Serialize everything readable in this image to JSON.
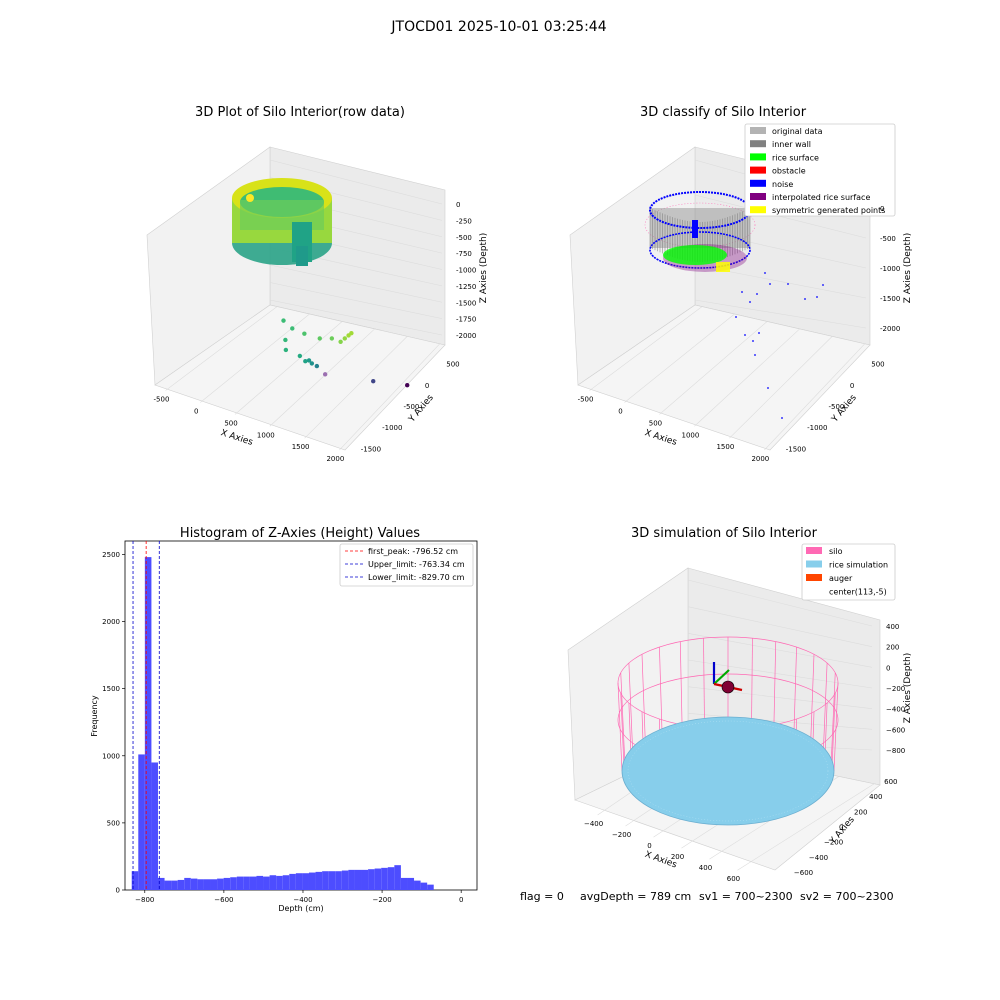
{
  "figure": {
    "suptitle": "JTOCD01 2025-10-01 03:25:44",
    "status_line": {
      "flag": "flag = 0",
      "avg_depth": "avgDepth = 789 cm",
      "sv1": "sv1 = 700~2300",
      "sv2": "sv2 = 700~2300"
    }
  },
  "colors": {
    "original": "#b3b3b3",
    "inner_wall": "#808080",
    "rice_surface": "#00ff00",
    "obstacle": "#ff0000",
    "noise": "#0000ff",
    "interpolated": "#800080",
    "symmetric": "#ffff00",
    "hist_bar": "#4d4dff",
    "silo": "#ff69b4",
    "rice_sim": "#87ceeb",
    "auger": "#ff4500",
    "peak_line": "#ff0000",
    "limit_line": "#0000cc"
  },
  "chart_data": [
    {
      "type": "scatter",
      "title": "3D Plot of Silo Interior(row data)",
      "projection": "3d",
      "xlabel": "X Axies",
      "ylabel": "Y Axies",
      "zlabel": "Z Axies (Depth)",
      "xticks": [
        "-500",
        "0",
        "500",
        "1000",
        "1500",
        "2000"
      ],
      "yticks": [
        "500",
        "0",
        "-500",
        "-1000",
        "-1500"
      ],
      "zticks": [
        "0",
        "-250",
        "-500",
        "-750",
        "-1000",
        "-1250",
        "-1500",
        "-1750",
        "-2000"
      ],
      "xlim": [
        -600,
        2200
      ],
      "ylim": [
        -1600,
        700
      ],
      "zlim": [
        -2050,
        100
      ],
      "colormap": "viridis",
      "series": [
        {
          "values": "silo ring near z≈-800",
          "points": [
            [
              0,
              0,
              -800
            ],
            [
              200,
              0,
              -800
            ],
            [
              400,
              0,
              -800
            ]
          ]
        }
      ],
      "outlier_points": [
        [
          450,
          -200,
          -900,
          "#3cbc75"
        ],
        [
          550,
          -250,
          -1000,
          "#3cbc75"
        ],
        [
          700,
          -300,
          -1050,
          "#4cc26c"
        ],
        [
          900,
          -350,
          -1080,
          "#5ec962"
        ],
        [
          1050,
          -400,
          -1060,
          "#6ccd5a"
        ],
        [
          1150,
          -450,
          -1100,
          "#84d44b"
        ],
        [
          1200,
          -470,
          -1050,
          "#93d741"
        ],
        [
          1250,
          -480,
          -1000,
          "#a2da37"
        ],
        [
          1280,
          -500,
          -970,
          "#a2da37"
        ],
        [
          380,
          -350,
          -1250,
          "#35b779"
        ],
        [
          420,
          -300,
          -1350,
          "#2db27d"
        ],
        [
          500,
          -500,
          -1500,
          "#25ab82"
        ],
        [
          550,
          -550,
          -1580,
          "#20a386"
        ],
        [
          560,
          -620,
          -1600,
          "#1f9a8a"
        ],
        [
          550,
          -700,
          -1680,
          "#21918c"
        ],
        [
          560,
          -800,
          -1760,
          "#26828e"
        ],
        [
          620,
          -900,
          -1900,
          "#9b6fb0"
        ],
        [
          1150,
          -1200,
          -1980,
          "#404688"
        ],
        [
          1500,
          -1450,
          -2050,
          "#440154"
        ]
      ]
    },
    {
      "type": "scatter",
      "title": "3D classify of Silo Interior",
      "projection": "3d",
      "xlabel": "X Axies",
      "ylabel": "Y Axies",
      "zlabel": "Z Axies (Depth)",
      "xticks": [
        "-500",
        "0",
        "500",
        "1000",
        "1500",
        "2000"
      ],
      "yticks": [
        "500",
        "0",
        "-500",
        "-1000",
        "-1500"
      ],
      "zticks": [
        "0",
        "-500",
        "-1000",
        "-1500",
        "-2000"
      ],
      "legend_position": "upper right",
      "legend": [
        "original data",
        "inner wall",
        "rice surface",
        "obstacle",
        "noise",
        "interpolated rice surface",
        "symmetric generated points"
      ]
    },
    {
      "type": "bar",
      "title": "Histogram of Z-Axies (Height) Values",
      "xlabel": "Depth (cm)",
      "ylabel": "Frequency",
      "xlim": [
        -850,
        40
      ],
      "ylim": [
        0,
        2600
      ],
      "xticks": [
        "−800",
        "−600",
        "−400",
        "−200",
        "0"
      ],
      "xtick_values": [
        -800,
        -600,
        -400,
        -200,
        0
      ],
      "yticks": [
        "0",
        "500",
        "1000",
        "1500",
        "2000",
        "2500"
      ],
      "ytick_values": [
        0,
        500,
        1000,
        1500,
        2000,
        2500
      ],
      "bin_edges_start": -833,
      "bin_width": 16.6,
      "values": [
        140,
        1010,
        2480,
        950,
        90,
        70,
        70,
        75,
        90,
        85,
        80,
        80,
        80,
        85,
        90,
        95,
        100,
        100,
        100,
        105,
        100,
        110,
        105,
        110,
        120,
        125,
        125,
        130,
        135,
        140,
        140,
        140,
        145,
        150,
        150,
        150,
        155,
        160,
        165,
        170,
        185,
        90,
        90,
        70,
        55,
        40
      ],
      "vlines": [
        {
          "name": "first_peak: -796.52 cm",
          "x": -796.52,
          "style": "peak"
        },
        {
          "name": "Upper_limit: -763.34 cm",
          "x": -763.34,
          "style": "limit"
        },
        {
          "name": "Lower_limit: -829.70 cm",
          "x": -829.7,
          "style": "limit"
        }
      ],
      "legend_position": "upper right"
    },
    {
      "type": "scatter",
      "title": "3D simulation of Silo Interior",
      "projection": "3d",
      "xlabel": "X Axies",
      "ylabel": "Y Axies",
      "zlabel": "Z Axies (Depth)",
      "xticks": [
        "−400",
        "−200",
        "0",
        "200",
        "400",
        "600"
      ],
      "yticks": [
        "600",
        "400",
        "200",
        "0",
        "−200",
        "−400",
        "−600"
      ],
      "zticks": [
        "400",
        "200",
        "0",
        "−200",
        "−400",
        "−600",
        "−800"
      ],
      "legend_position": "upper right",
      "legend": [
        "silo",
        "rice simulation",
        "auger",
        "center(113,-5)"
      ]
    }
  ]
}
